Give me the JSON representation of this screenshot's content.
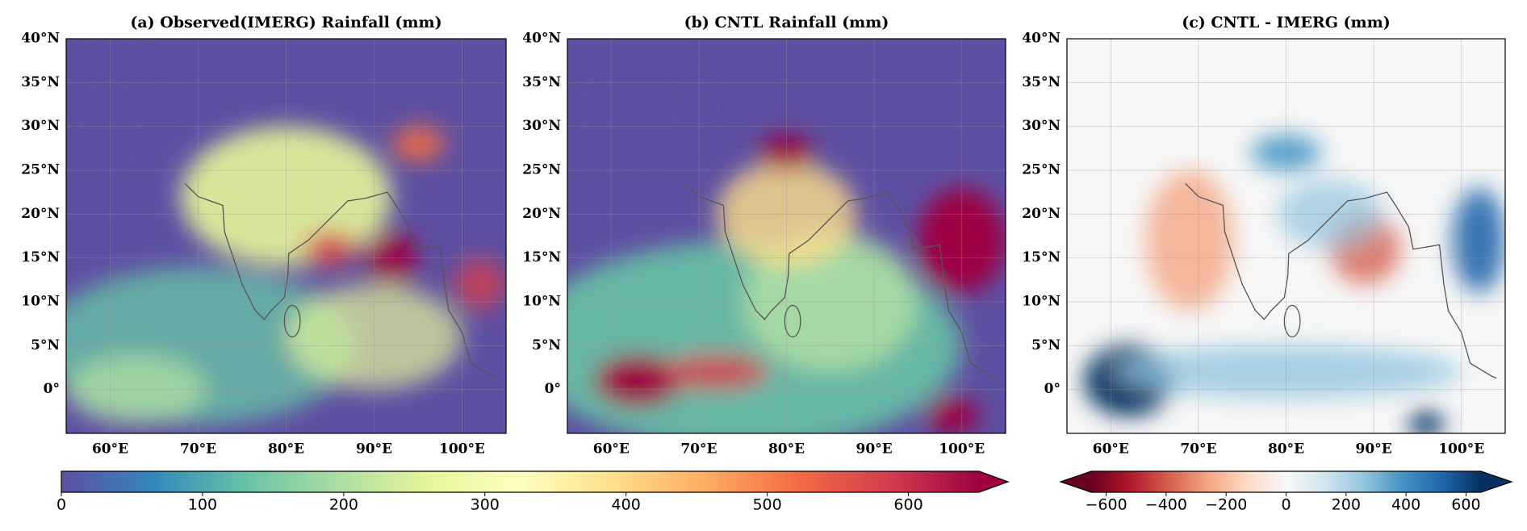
{
  "chart_data": [
    {
      "type": "map",
      "title": "(a) Observed(IMERG) Rainfall (mm)",
      "background": "#5e4fa2",
      "xlim": [
        55,
        105
      ],
      "ylim": [
        -5,
        40
      ],
      "xticks": [
        {
          "value": 60,
          "label": "60°E"
        },
        {
          "value": 70,
          "label": "70°E"
        },
        {
          "value": 80,
          "label": "80°E"
        },
        {
          "value": 90,
          "label": "90°E"
        },
        {
          "value": 100,
          "label": "100°E"
        }
      ],
      "yticks": [
        {
          "value": 0,
          "label": "0°"
        },
        {
          "value": 5,
          "label": "5°N"
        },
        {
          "value": 10,
          "label": "10°N"
        },
        {
          "value": 15,
          "label": "15°N"
        },
        {
          "value": 20,
          "label": "20°N"
        },
        {
          "value": 25,
          "label": "25°N"
        },
        {
          "value": 30,
          "label": "30°N"
        },
        {
          "value": 35,
          "label": "35°N"
        },
        {
          "value": 40,
          "label": "40°N"
        }
      ]
    },
    {
      "type": "map",
      "title": "(b) CNTL Rainfall (mm)",
      "background": "#5e4fa2",
      "xlim": [
        55,
        105
      ],
      "ylim": [
        -5,
        40
      ],
      "xticks": [
        {
          "value": 60,
          "label": "60°E"
        },
        {
          "value": 70,
          "label": "70°E"
        },
        {
          "value": 80,
          "label": "80°E"
        },
        {
          "value": 90,
          "label": "90°E"
        },
        {
          "value": 100,
          "label": "100°E"
        }
      ],
      "yticks": [
        {
          "value": 0,
          "label": "0°"
        },
        {
          "value": 5,
          "label": "5°N"
        },
        {
          "value": 10,
          "label": "10°N"
        },
        {
          "value": 15,
          "label": "15°N"
        },
        {
          "value": 20,
          "label": "20°N"
        },
        {
          "value": 25,
          "label": "25°N"
        },
        {
          "value": 30,
          "label": "30°N"
        },
        {
          "value": 35,
          "label": "35°N"
        },
        {
          "value": 40,
          "label": "40°N"
        }
      ]
    },
    {
      "type": "map",
      "title": "(c) CNTL - IMERG (mm)",
      "background": "#f7f7f7",
      "xlim": [
        55,
        105
      ],
      "ylim": [
        -5,
        40
      ],
      "xticks": [
        {
          "value": 60,
          "label": "60°E"
        },
        {
          "value": 70,
          "label": "70°E"
        },
        {
          "value": 80,
          "label": "80°E"
        },
        {
          "value": 90,
          "label": "90°E"
        },
        {
          "value": 100,
          "label": "100°E"
        }
      ],
      "yticks": [
        {
          "value": 0,
          "label": "0°"
        },
        {
          "value": 5,
          "label": "5°N"
        },
        {
          "value": 10,
          "label": "10°N"
        },
        {
          "value": 15,
          "label": "15°N"
        },
        {
          "value": 20,
          "label": "20°N"
        },
        {
          "value": 25,
          "label": "25°N"
        },
        {
          "value": 30,
          "label": "30°N"
        },
        {
          "value": 35,
          "label": "35°N"
        },
        {
          "value": 40,
          "label": "40°N"
        }
      ]
    },
    {
      "type": "colorbar",
      "xlim": [
        0,
        650
      ],
      "extend": "max",
      "colors": [
        "#5e4fa2",
        "#3288bd",
        "#66c2a5",
        "#abdda4",
        "#e6f598",
        "#ffffbf",
        "#fee08b",
        "#fdae61",
        "#f46d43",
        "#d53e4f",
        "#9e0142"
      ],
      "xticks": [
        0,
        100,
        200,
        300,
        400,
        500,
        600
      ]
    },
    {
      "type": "colorbar",
      "xlim": [
        -650,
        650
      ],
      "extend": "both",
      "colors": [
        "#67001f",
        "#b2182b",
        "#d6604d",
        "#f4a582",
        "#fddbc7",
        "#f7f7f7",
        "#d1e5f0",
        "#92c5de",
        "#4393c3",
        "#2166ac",
        "#053061"
      ],
      "xticks": [
        {
          "value": -600,
          "label": "−600"
        },
        {
          "value": -400,
          "label": "−400"
        },
        {
          "value": -200,
          "label": "−200"
        },
        0,
        200,
        400,
        600
      ]
    }
  ]
}
